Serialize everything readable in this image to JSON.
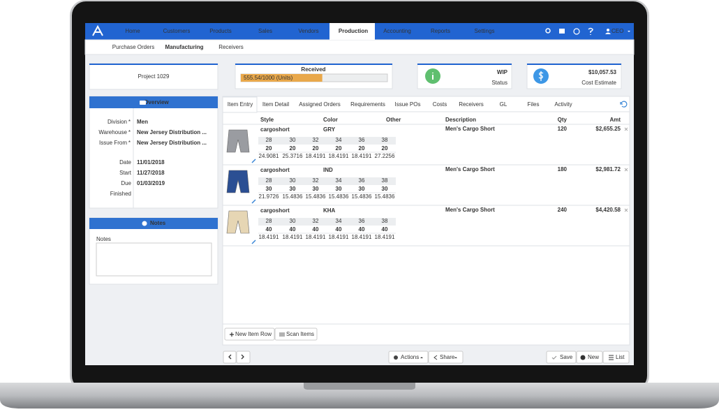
{
  "nav": {
    "items": [
      "Home",
      "Customers",
      "Products",
      "Sales",
      "Vendors",
      "Production",
      "Accounting",
      "Reports",
      "Settings"
    ],
    "user": "CEO"
  },
  "subnav": {
    "items": [
      "Purchase Orders",
      "Manufacturing",
      "Receivers"
    ]
  },
  "project": {
    "title": "Project 1029"
  },
  "received": {
    "label": "Received",
    "value": 555.54,
    "max": 1000,
    "progress_label": "555.54/1000 (Units)"
  },
  "status": {
    "value": "WIP",
    "label": "Status"
  },
  "cost": {
    "value": "$10,057.53",
    "label": "Cost Estimate"
  },
  "overview": {
    "title": "Overview",
    "groups": [
      [
        {
          "label": "Division",
          "mark": "*",
          "value": "Men"
        },
        {
          "label": "Warehouse",
          "mark": "*",
          "value": "New Jersey Distribution ..."
        },
        {
          "label": "Issue From",
          "mark": "*",
          "value": "New Jersey Distribution ..."
        }
      ],
      [
        {
          "label": "Date",
          "value": "11/01/2018"
        },
        {
          "label": "Start",
          "value": "11/27/2018"
        },
        {
          "label": "Due",
          "value": "01/03/2019"
        },
        {
          "label": "Finished"
        }
      ]
    ]
  },
  "notes": {
    "title": "Notes",
    "label": "Notes"
  },
  "tabs": [
    "Item Entry",
    "Item Detail",
    "Assigned Orders",
    "Requirements",
    "Issue POs",
    "Costs",
    "Receivers",
    "GL",
    "Files",
    "Activity"
  ],
  "table": {
    "headers": [
      "Style",
      "Color",
      "Other",
      "Description",
      "Qty",
      "Amt"
    ],
    "rows": [
      {
        "image_color": "#9a9ca1",
        "style": "cargoshort",
        "color": "GRY",
        "sizes": [
          "28",
          "30",
          "32",
          "34",
          "36",
          "38"
        ],
        "qty": [
          "20",
          "20",
          "20",
          "20",
          "20",
          "20"
        ],
        "costs": [
          "24.9081",
          "25.3716",
          "18.4191",
          "18.4191",
          "18.4191",
          "27.2256"
        ],
        "description": "Men's Cargo Short",
        "total_qty": "120",
        "amount": "$2,655.25"
      },
      {
        "image_color": "#2b4f93",
        "style": "cargoshort",
        "color": "IND",
        "sizes": [
          "28",
          "30",
          "32",
          "34",
          "36",
          "38"
        ],
        "qty": [
          "30",
          "30",
          "30",
          "30",
          "30",
          "30"
        ],
        "costs": [
          "21.9726",
          "15.4836",
          "15.4836",
          "15.4836",
          "15.4836",
          "15.4836"
        ],
        "description": "Men's Cargo Short",
        "total_qty": "180",
        "amount": "$2,981.72"
      },
      {
        "image_color": "#e6d6b4",
        "style": "cargoshort",
        "color": "KHA",
        "sizes": [
          "28",
          "30",
          "32",
          "34",
          "36",
          "38"
        ],
        "qty": [
          "40",
          "40",
          "40",
          "40",
          "40",
          "40"
        ],
        "costs": [
          "18.4191",
          "18.4191",
          "18.4191",
          "18.4191",
          "18.4191",
          "18.4191"
        ],
        "description": "Men's Cargo Short",
        "total_qty": "240",
        "amount": "$4,420.58"
      }
    ]
  },
  "toolbar": {
    "new_row": "New Item Row",
    "scan": "Scan Items"
  },
  "footer": {
    "actions": "Actions",
    "share": "Share",
    "save": "Save",
    "new": "New",
    "list": "List"
  }
}
